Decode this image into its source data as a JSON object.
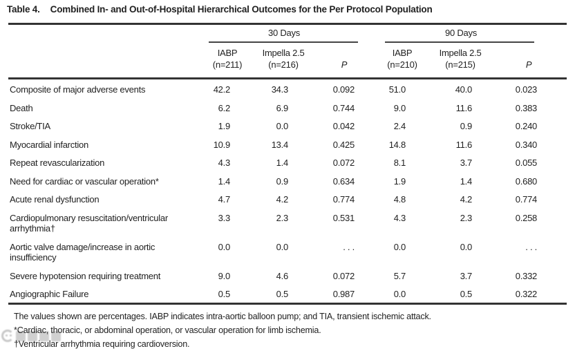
{
  "title": {
    "number": "Table 4.",
    "caption": "Combined In- and Out-of-Hospital Hierarchical Outcomes for the Per Protocol Population"
  },
  "table": {
    "groups": [
      {
        "label": "30 Days"
      },
      {
        "label": "90 Days"
      }
    ],
    "columns": [
      {
        "line1": "IABP",
        "line2": "(n=211)",
        "italic": false
      },
      {
        "line1": "Impella 2.5",
        "line2": "(n=216)",
        "italic": false
      },
      {
        "line1": "",
        "line2": "P",
        "italic": true
      },
      {
        "line1": "IABP",
        "line2": "(n=210)",
        "italic": false
      },
      {
        "line1": "Impella 2.5",
        "line2": "(n=215)",
        "italic": false
      },
      {
        "line1": "",
        "line2": "P",
        "italic": true
      }
    ],
    "rows": [
      {
        "label": "Composite of major adverse events",
        "values": [
          "42.2",
          "34.3",
          "0.092",
          "51.0",
          "40.0",
          "0.023"
        ]
      },
      {
        "label": "Death",
        "values": [
          "6.2",
          "6.9",
          "0.744",
          "9.0",
          "11.6",
          "0.383"
        ]
      },
      {
        "label": "Stroke/TIA",
        "values": [
          "1.9",
          "0.0",
          "0.042",
          "2.4",
          "0.9",
          "0.240"
        ]
      },
      {
        "label": "Myocardial infarction",
        "values": [
          "10.9",
          "13.4",
          "0.425",
          "14.8",
          "11.6",
          "0.340"
        ]
      },
      {
        "label": "Repeat revascularization",
        "values": [
          "4.3",
          "1.4",
          "0.072",
          "8.1",
          "3.7",
          "0.055"
        ]
      },
      {
        "label": "Need for cardiac or vascular operation*",
        "values": [
          "1.4",
          "0.9",
          "0.634",
          "1.9",
          "1.4",
          "0.680"
        ]
      },
      {
        "label": "Acute renal dysfunction",
        "values": [
          "4.7",
          "4.2",
          "0.774",
          "4.8",
          "4.2",
          "0.774"
        ]
      },
      {
        "label": "Cardiopulmonary resuscitation/ventricular arrhythmia†",
        "values": [
          "3.3",
          "2.3",
          "0.531",
          "4.3",
          "2.3",
          "0.258"
        ]
      },
      {
        "label": "Aortic valve damage/increase in aortic insufficiency",
        "values": [
          "0.0",
          "0.0",
          ". . .",
          "0.0",
          "0.0",
          ". . ."
        ]
      },
      {
        "label": "Severe hypotension requiring treatment",
        "values": [
          "9.0",
          "4.6",
          "0.072",
          "5.7",
          "3.7",
          "0.332"
        ]
      },
      {
        "label": "Angiographic Failure",
        "values": [
          "0.5",
          "0.5",
          "0.987",
          "0.0",
          "0.5",
          "0.322"
        ]
      }
    ]
  },
  "footnotes": [
    "The values shown are percentages. IABP indicates intra-aortic balloon pump; and TIA, transient ischemic attack.",
    "*Cardiac, thoracic, or abdominal operation, or vascular operation for limb ischemia.",
    "†Ventricular arrhythmia requiring cardioversion."
  ],
  "colors": {
    "text": "#212121",
    "rule": "#333333",
    "watermark_gray": "#9a9a9a",
    "background": "#ffffff"
  }
}
